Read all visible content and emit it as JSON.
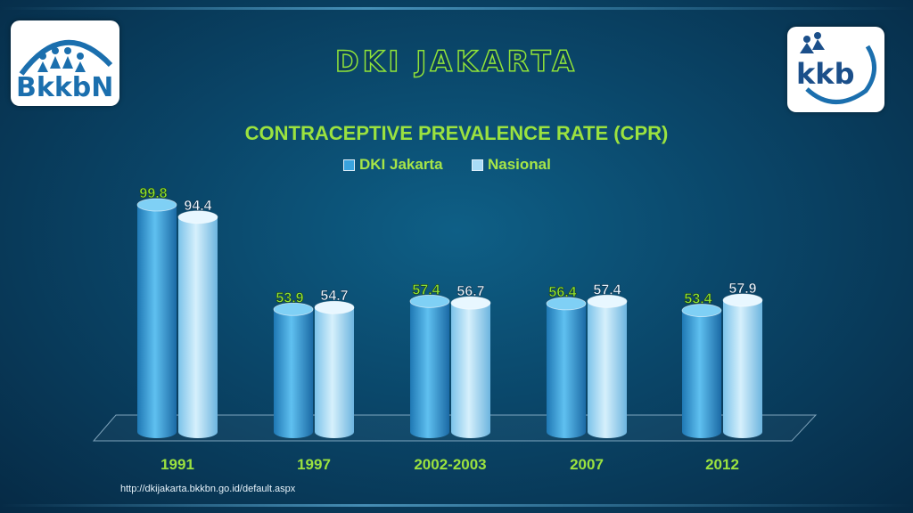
{
  "page": {
    "title": "DKI JAKARTA",
    "source": "http://dkijakarta.bkkbn.go.id/default.aspx"
  },
  "logos": {
    "left": "BkkbN",
    "right": "kkb"
  },
  "colors": {
    "dki": "#3aa3de",
    "nasional": "#a9dcf7",
    "accent": "#9be23f"
  },
  "chart_data": {
    "type": "bar",
    "title": "CONTRACEPTIVE PREVALENCE RATE (CPR)",
    "categories": [
      "1991",
      "1997",
      "2002-2003",
      "2007",
      "2012"
    ],
    "series": [
      {
        "name": "DKI Jakarta",
        "values": [
          99.8,
          53.9,
          57.4,
          56.4,
          53.4
        ]
      },
      {
        "name": "Nasional",
        "values": [
          94.4,
          54.7,
          56.7,
          57.4,
          57.9
        ]
      }
    ],
    "ylim": [
      0,
      100
    ],
    "grid": false,
    "legend": "top"
  }
}
